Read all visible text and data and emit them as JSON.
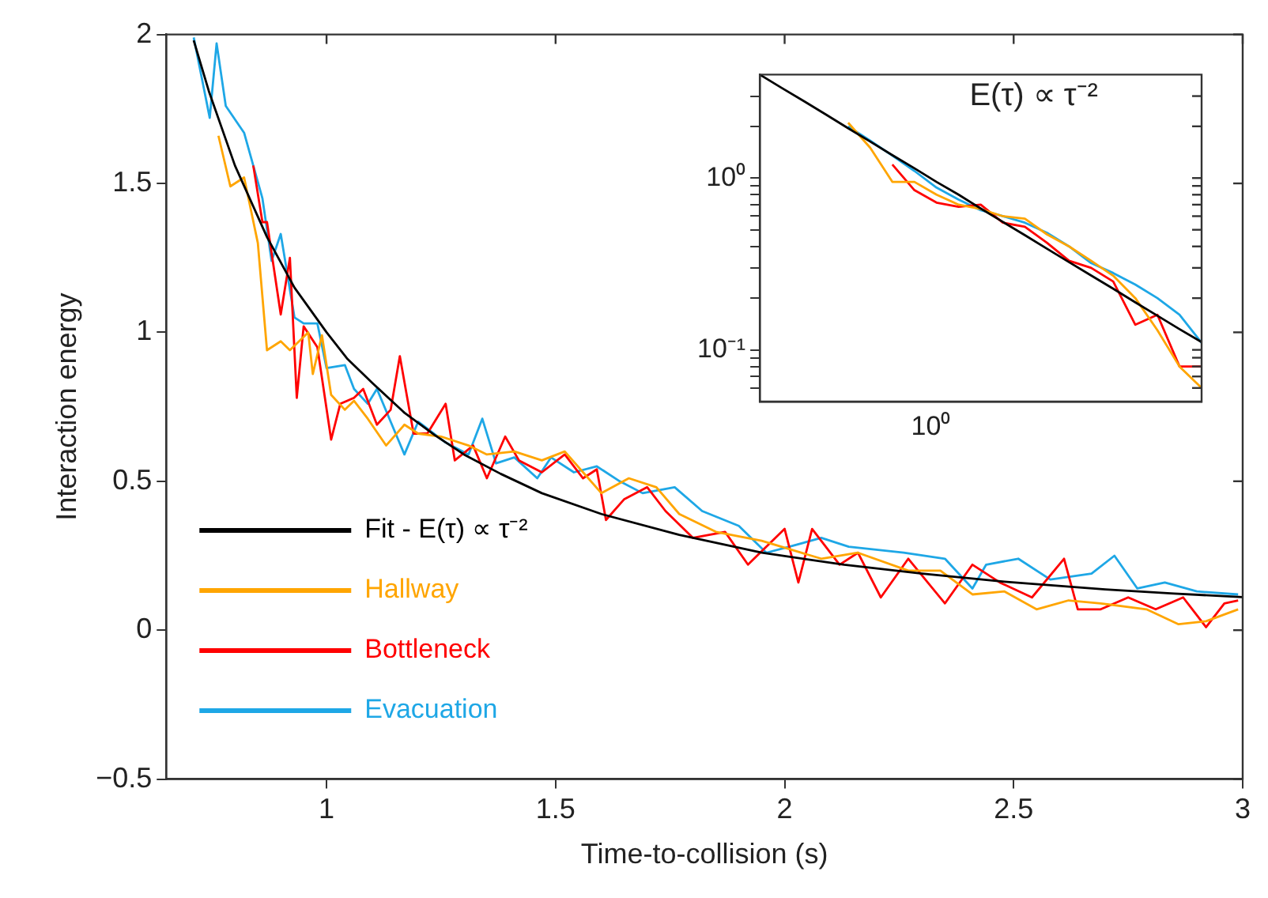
{
  "chart_data": [
    {
      "type": "line",
      "xlabel": "Time-to-collision (s)",
      "ylabel": "Interaction energy",
      "xlim": [
        0.65,
        3
      ],
      "xticks": [
        1,
        1.5,
        2,
        2.5,
        3
      ],
      "ylim": [
        -0.5,
        2
      ],
      "yticks": [
        {
          "value": -0.5,
          "label": "−0.5"
        },
        0,
        0.5,
        1,
        1.5,
        2
      ],
      "legend": "bottom left",
      "series": [
        {
          "name": "Fit - E(τ) ∝ τ⁻²",
          "color": "#000000",
          "x": [
            0.71,
            0.743,
            0.8,
            0.87,
            0.93,
            1.0,
            1.046,
            1.1,
            1.17,
            1.236,
            1.3,
            1.38,
            1.47,
            1.6,
            1.77,
            1.95,
            2.13,
            2.3,
            2.48,
            2.7,
            2.85,
            3.0
          ],
          "values": [
            1.98,
            1.81,
            1.56,
            1.32,
            1.15,
            1.0,
            0.91,
            0.83,
            0.73,
            0.655,
            0.59,
            0.525,
            0.46,
            0.39,
            0.32,
            0.26,
            0.22,
            0.19,
            0.163,
            0.137,
            0.123,
            0.111
          ]
        },
        {
          "name": "Hallway",
          "color": "#ffa500",
          "x": [
            0.764,
            0.79,
            0.82,
            0.85,
            0.87,
            0.9,
            0.92,
            0.96,
            0.97,
            0.99,
            1.01,
            1.04,
            1.06,
            1.09,
            1.13,
            1.17,
            1.2,
            1.25,
            1.31,
            1.35,
            1.41,
            1.47,
            1.52,
            1.56,
            1.6,
            1.66,
            1.72,
            1.77,
            1.85,
            1.95,
            2.08,
            2.16,
            2.27,
            2.34,
            2.41,
            2.48,
            2.55,
            2.62,
            2.69,
            2.79,
            2.86,
            2.92,
            2.99
          ],
          "values": [
            1.66,
            1.49,
            1.52,
            1.3,
            0.94,
            0.97,
            0.94,
            1.0,
            0.86,
            0.99,
            0.79,
            0.74,
            0.77,
            0.71,
            0.62,
            0.69,
            0.66,
            0.65,
            0.62,
            0.59,
            0.6,
            0.57,
            0.6,
            0.53,
            0.46,
            0.51,
            0.48,
            0.39,
            0.33,
            0.3,
            0.24,
            0.26,
            0.2,
            0.2,
            0.12,
            0.13,
            0.07,
            0.1,
            0.09,
            0.07,
            0.02,
            0.03,
            0.07
          ]
        },
        {
          "name": "Bottleneck",
          "color": "#ff0000",
          "x": [
            0.84,
            0.86,
            0.87,
            0.9,
            0.92,
            0.935,
            0.95,
            0.98,
            1.01,
            1.03,
            1.06,
            1.08,
            1.11,
            1.14,
            1.16,
            1.19,
            1.22,
            1.26,
            1.28,
            1.32,
            1.35,
            1.39,
            1.42,
            1.47,
            1.52,
            1.56,
            1.59,
            1.61,
            1.65,
            1.7,
            1.74,
            1.8,
            1.87,
            1.92,
            2.0,
            2.03,
            2.06,
            2.12,
            2.16,
            2.21,
            2.27,
            2.35,
            2.41,
            2.47,
            2.54,
            2.61,
            2.64,
            2.69,
            2.75,
            2.81,
            2.87,
            2.92,
            2.96,
            2.99
          ],
          "values": [
            1.56,
            1.37,
            1.37,
            1.06,
            1.25,
            0.78,
            1.02,
            0.95,
            0.64,
            0.76,
            0.78,
            0.81,
            0.69,
            0.74,
            0.92,
            0.66,
            0.66,
            0.76,
            0.57,
            0.62,
            0.51,
            0.65,
            0.57,
            0.53,
            0.59,
            0.51,
            0.54,
            0.37,
            0.44,
            0.48,
            0.4,
            0.31,
            0.33,
            0.22,
            0.34,
            0.16,
            0.34,
            0.22,
            0.26,
            0.11,
            0.24,
            0.09,
            0.22,
            0.16,
            0.11,
            0.24,
            0.07,
            0.07,
            0.11,
            0.07,
            0.11,
            0.01,
            0.09,
            0.1
          ]
        },
        {
          "name": "Evacuation",
          "color": "#1ea7e6",
          "x": [
            0.71,
            0.745,
            0.76,
            0.78,
            0.82,
            0.86,
            0.88,
            0.9,
            0.93,
            0.95,
            0.98,
            1.0,
            1.04,
            1.06,
            1.09,
            1.11,
            1.14,
            1.17,
            1.2,
            1.26,
            1.31,
            1.34,
            1.37,
            1.41,
            1.46,
            1.49,
            1.54,
            1.59,
            1.64,
            1.69,
            1.76,
            1.82,
            1.9,
            1.96,
            2.01,
            2.08,
            2.14,
            2.26,
            2.35,
            2.41,
            2.44,
            2.51,
            2.58,
            2.67,
            2.72,
            2.77,
            2.83,
            2.9,
            2.99
          ],
          "values": [
            1.99,
            1.72,
            1.97,
            1.76,
            1.67,
            1.45,
            1.24,
            1.33,
            1.05,
            1.03,
            1.03,
            0.88,
            0.89,
            0.81,
            0.76,
            0.81,
            0.7,
            0.59,
            0.7,
            0.63,
            0.59,
            0.71,
            0.56,
            0.58,
            0.51,
            0.58,
            0.53,
            0.55,
            0.5,
            0.46,
            0.48,
            0.4,
            0.35,
            0.26,
            0.28,
            0.31,
            0.28,
            0.26,
            0.24,
            0.14,
            0.22,
            0.24,
            0.17,
            0.19,
            0.25,
            0.14,
            0.16,
            0.13,
            0.12
          ]
        }
      ]
    },
    {
      "type": "line",
      "log": "y",
      "annotations": [
        "E(τ) ∝ τ⁻²",
        "10⁰"
      ],
      "categories": [
        null,
        null,
        null,
        null,
        null,
        null,
        null,
        null,
        null,
        null,
        null,
        null,
        null,
        null,
        null,
        null,
        null,
        null,
        null,
        null,
        null
      ],
      "ylim": [
        0.05,
        4
      ],
      "yticks": [
        {
          "value": 0.06,
          "label": null
        },
        {
          "value": 0.07,
          "label": null
        },
        {
          "value": 0.08,
          "label": null
        },
        {
          "value": 0.09,
          "label": null
        },
        {
          "value": 0.1,
          "label": "10⁻¹"
        },
        {
          "value": 0.2,
          "label": null
        },
        {
          "value": 0.3,
          "label": null
        },
        {
          "value": 0.4,
          "label": null
        },
        {
          "value": 0.5,
          "label": null
        },
        {
          "value": 0.6,
          "label": null
        },
        {
          "value": 0.7,
          "label": null
        },
        {
          "value": 0.8,
          "label": null
        },
        {
          "value": 0.9,
          "label": null
        },
        {
          "value": 1,
          "label": "10⁰"
        },
        {
          "value": 2,
          "label": null
        },
        {
          "value": 3,
          "label": null
        }
      ],
      "series": [
        {
          "color": "#000000",
          "values": [
            4.0,
            3.34,
            2.8,
            2.34,
            1.95,
            1.63,
            1.36,
            1.14,
            0.95,
            0.8,
            0.665,
            0.556,
            0.465,
            0.388,
            0.324,
            0.271,
            0.227,
            0.189,
            0.158,
            0.132,
            0.111
          ]
        },
        {
          "color": "#ffa500",
          "values": [
            null,
            null,
            null,
            null,
            2.1,
            1.5,
            0.95,
            0.95,
            0.8,
            0.7,
            0.66,
            0.6,
            0.58,
            0.47,
            0.4,
            0.33,
            0.27,
            0.2,
            0.13,
            0.08,
            0.06
          ]
        },
        {
          "color": "#ff0000",
          "values": [
            null,
            null,
            null,
            null,
            null,
            null,
            1.2,
            0.85,
            0.72,
            0.68,
            0.7,
            0.55,
            0.52,
            0.42,
            0.33,
            0.3,
            0.25,
            0.14,
            0.16,
            0.08,
            0.08
          ]
        },
        {
          "color": "#1ea7e6",
          "values": [
            null,
            null,
            null,
            null,
            2.0,
            1.65,
            1.35,
            1.1,
            0.88,
            0.75,
            0.65,
            0.6,
            0.55,
            0.48,
            0.4,
            0.32,
            0.28,
            0.24,
            0.2,
            0.16,
            0.11
          ]
        }
      ]
    }
  ]
}
